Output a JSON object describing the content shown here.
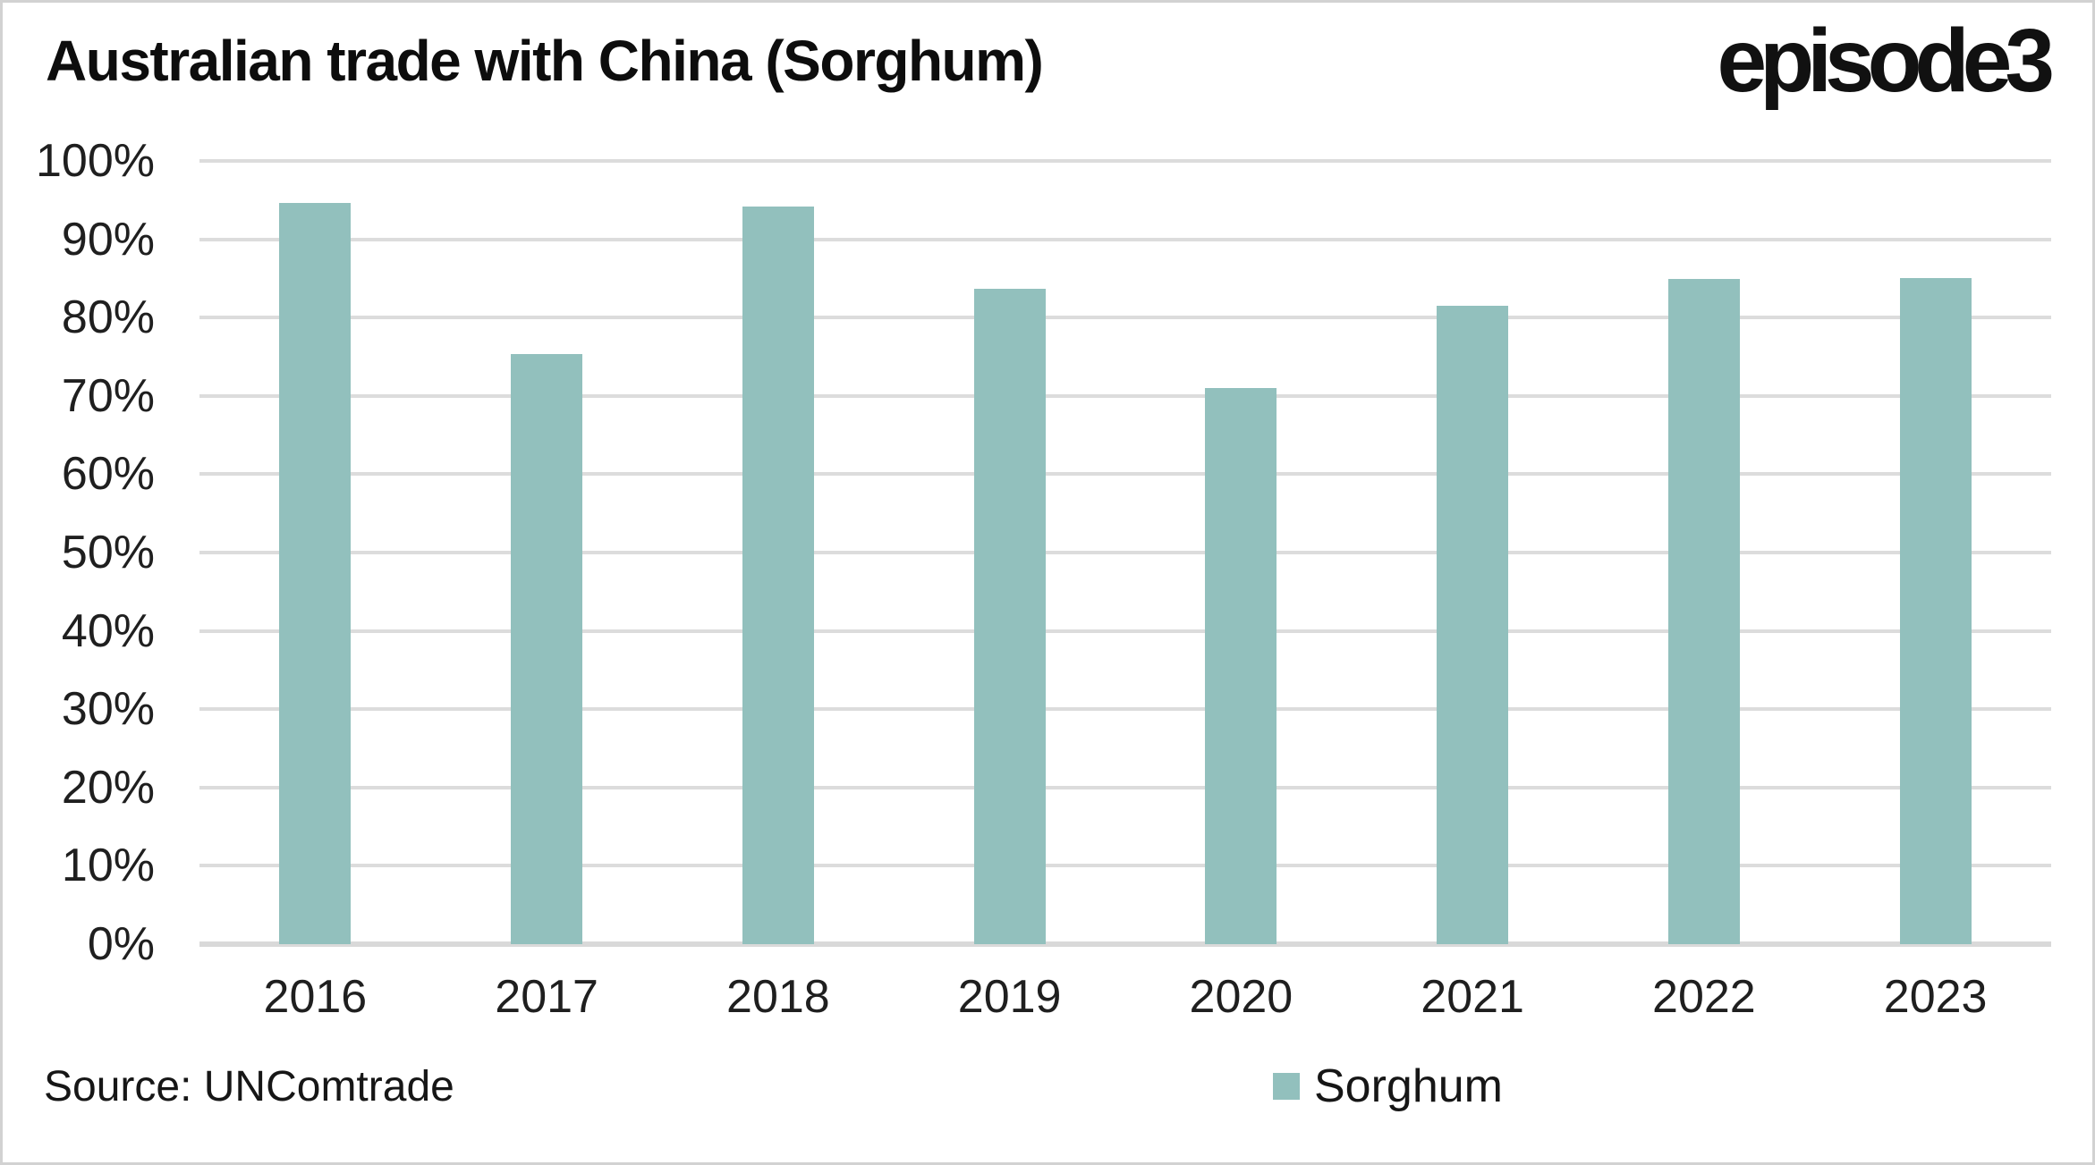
{
  "header": {
    "title": "Australian trade with China (Sorghum)",
    "logo": "episode3"
  },
  "footer": {
    "source": "Source: UNComtrade",
    "legend": {
      "label": "Sorghum",
      "swatch_color": "#92c0bd"
    }
  },
  "chart_data": {
    "type": "bar",
    "title": "Australian trade with China (Sorghum)",
    "categories": [
      "2016",
      "2017",
      "2018",
      "2019",
      "2020",
      "2021",
      "2022",
      "2023"
    ],
    "series": [
      {
        "name": "Sorghum",
        "values": [
          94.6,
          75.4,
          94.2,
          83.7,
          71.0,
          81.5,
          84.9,
          85.1
        ]
      }
    ],
    "xlabel": "",
    "ylabel": "",
    "ylim": [
      0,
      100
    ],
    "ytick_step": 10,
    "ytick_labels": [
      "100%",
      "90%",
      "80%",
      "70%",
      "60%",
      "50%",
      "40%",
      "30%",
      "20%",
      "10%",
      "0%"
    ],
    "grid": "horizontal",
    "legend_position": "bottom",
    "colors": {
      "bar": "#92c0bd",
      "gridline": "#dcdcdc",
      "axis_line": "#d9d9d9"
    }
  }
}
